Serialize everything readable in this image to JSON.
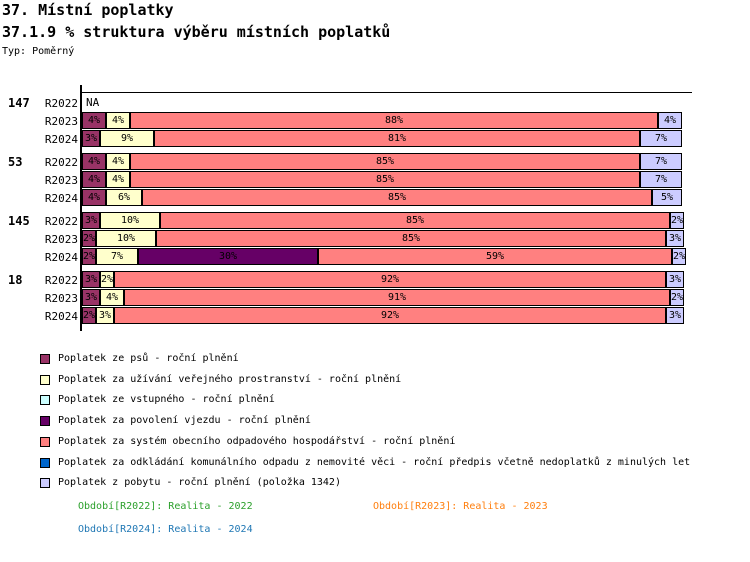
{
  "header": {
    "title1": "37. Místní poplatky",
    "title2": "37.1.9 % struktura výběru místních poplatků",
    "type_label": "Typ: Poměrný"
  },
  "chart_data": {
    "type": "bar",
    "orientation": "horizontal-stacked",
    "unit": "%",
    "xlim": [
      0,
      100
    ],
    "na_label": "NA",
    "series": [
      {
        "key": "psi",
        "color": "#993366",
        "label": "Poplatek ze psů - roční plnění"
      },
      {
        "key": "prostranstvi",
        "color": "#FFFFCC",
        "label": "Poplatek za užívání veřejného prostranství - roční plnění"
      },
      {
        "key": "vstupne",
        "color": "#CCFFFF",
        "label": "Poplatek ze vstupného - roční plnění"
      },
      {
        "key": "vjezd",
        "color": "#660066",
        "label": "Poplatek za povolení vjezdu - roční plnění"
      },
      {
        "key": "odpad-system",
        "color": "#FF8080",
        "label": "Poplatek za systém obecního odpadového hospodářství - roční plnění"
      },
      {
        "key": "odpad-odkladani",
        "color": "#0066CC",
        "label": "Poplatek za odkládání komunálního odpadu z nemovité věci - roční předpis včetně nedoplatků z minulých let"
      },
      {
        "key": "pobyt",
        "color": "#CCCCFF",
        "label": "Poplatek z pobytu - roční plnění (položka 1342)"
      }
    ],
    "groups": [
      {
        "label": "147",
        "rows": [
          {
            "period": "R2022",
            "na": true,
            "segments": []
          },
          {
            "period": "R2023",
            "segments": [
              {
                "s": 0,
                "v": 4
              },
              {
                "s": 1,
                "v": 4
              },
              {
                "s": 4,
                "v": 88
              },
              {
                "s": 6,
                "v": 4
              }
            ]
          },
          {
            "period": "R2024",
            "segments": [
              {
                "s": 0,
                "v": 3
              },
              {
                "s": 1,
                "v": 9
              },
              {
                "s": 4,
                "v": 81
              },
              {
                "s": 6,
                "v": 7
              }
            ]
          }
        ]
      },
      {
        "label": "53",
        "rows": [
          {
            "period": "R2022",
            "segments": [
              {
                "s": 0,
                "v": 4
              },
              {
                "s": 1,
                "v": 4
              },
              {
                "s": 4,
                "v": 85
              },
              {
                "s": 6,
                "v": 7
              }
            ]
          },
          {
            "period": "R2023",
            "segments": [
              {
                "s": 0,
                "v": 4
              },
              {
                "s": 1,
                "v": 4
              },
              {
                "s": 4,
                "v": 85
              },
              {
                "s": 6,
                "v": 7
              }
            ]
          },
          {
            "period": "R2024",
            "segments": [
              {
                "s": 0,
                "v": 4
              },
              {
                "s": 1,
                "v": 6
              },
              {
                "s": 4,
                "v": 85
              },
              {
                "s": 6,
                "v": 5
              }
            ]
          }
        ]
      },
      {
        "label": "145",
        "rows": [
          {
            "period": "R2022",
            "segments": [
              {
                "s": 0,
                "v": 3
              },
              {
                "s": 1,
                "v": 10
              },
              {
                "s": 4,
                "v": 85
              },
              {
                "s": 6,
                "v": 2
              }
            ]
          },
          {
            "period": "R2023",
            "segments": [
              {
                "s": 0,
                "v": 2
              },
              {
                "s": 1,
                "v": 10
              },
              {
                "s": 4,
                "v": 85
              },
              {
                "s": 6,
                "v": 3
              }
            ]
          },
          {
            "period": "R2024",
            "segments": [
              {
                "s": 0,
                "v": 2
              },
              {
                "s": 1,
                "v": 7
              },
              {
                "s": 3,
                "v": 30
              },
              {
                "s": 4,
                "v": 59
              },
              {
                "s": 6,
                "v": 2
              }
            ]
          }
        ]
      },
      {
        "label": "18",
        "rows": [
          {
            "period": "R2022",
            "segments": [
              {
                "s": 0,
                "v": 3
              },
              {
                "s": 1,
                "v": 2
              },
              {
                "s": 4,
                "v": 92
              },
              {
                "s": 6,
                "v": 3
              }
            ]
          },
          {
            "period": "R2023",
            "segments": [
              {
                "s": 0,
                "v": 3
              },
              {
                "s": 1,
                "v": 4
              },
              {
                "s": 4,
                "v": 91
              },
              {
                "s": 6,
                "v": 2
              }
            ]
          },
          {
            "period": "R2024",
            "segments": [
              {
                "s": 0,
                "v": 2
              },
              {
                "s": 1,
                "v": 3
              },
              {
                "s": 4,
                "v": 92
              },
              {
                "s": 6,
                "v": 3
              }
            ]
          }
        ]
      }
    ],
    "periods": [
      {
        "label": "Období[R2022]: Realita - 2022",
        "color": "#2CA02C"
      },
      {
        "label": "Období[R2023]: Realita - 2023",
        "color": "#FF7F0E"
      },
      {
        "label": "Období[R2024]: Realita - 2024",
        "color": "#1F77B4"
      }
    ],
    "legend_position": "bottom-left",
    "grid": "top-line-only"
  }
}
